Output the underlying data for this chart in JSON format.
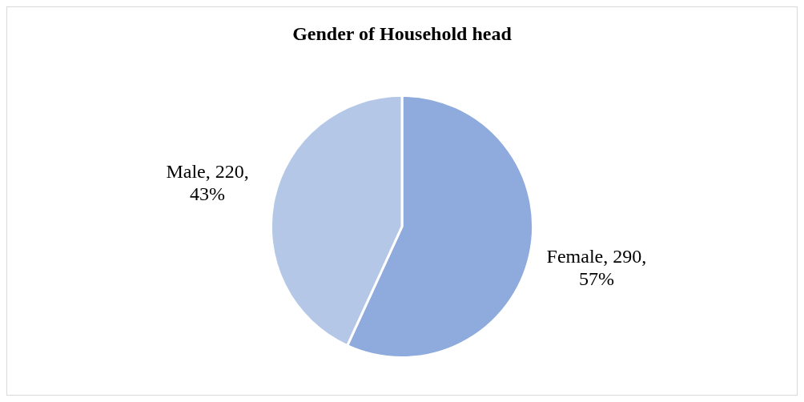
{
  "chart_data": {
    "type": "pie",
    "title": "Gender of Household head",
    "categories": [
      "Female",
      "Male"
    ],
    "values": [
      290,
      220
    ],
    "colors": [
      "#8faadc",
      "#b4c7e7"
    ],
    "value_labels": [
      "290, 57%",
      "220, 43%"
    ],
    "legend": false
  }
}
